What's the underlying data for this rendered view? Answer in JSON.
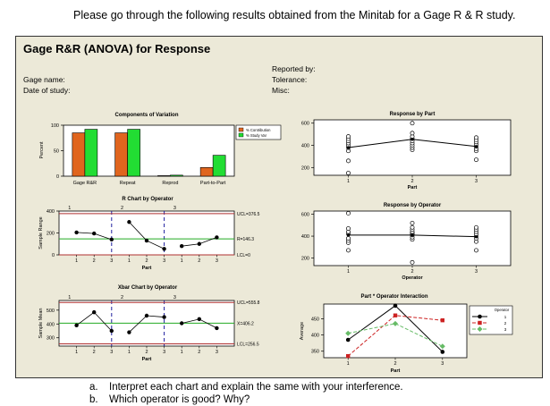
{
  "header": {
    "question": "Please go through the following results obtained from the Minitab for a Gage R & R study."
  },
  "panel": {
    "title": "Gage R&R (ANOVA) for Response",
    "left_meta": [
      "Gage name:",
      "Date of study:"
    ],
    "right_meta": [
      "Reported by:",
      "Tolerance:",
      "Misc:"
    ]
  },
  "tasks": [
    {
      "letter": "a.",
      "text": "Interpret each chart and explain the same with your interference."
    },
    {
      "letter": "b.",
      "text": "Which operator is good?  Why?"
    }
  ],
  "colors": {
    "contribution": "#e0651e",
    "study_var": "#22dd33",
    "limit": "#b03030",
    "center": "#22aa22",
    "op1": "#000000",
    "op2": "#cc2222",
    "op3": "#66bb66"
  },
  "chart_data": [
    {
      "id": "components",
      "type": "bar",
      "title": "Components of Variation",
      "ylabel": "Percent",
      "categories": [
        "Gage R&R",
        "Repeat",
        "Reprod",
        "Part-to-Part"
      ],
      "series": [
        {
          "name": "% Contribution",
          "values": [
            85,
            85,
            1,
            17
          ]
        },
        {
          "name": "% Study Var",
          "values": [
            92,
            92,
            2,
            41
          ]
        }
      ],
      "ylim": [
        0,
        100
      ],
      "yticks": [
        0,
        50,
        100
      ]
    },
    {
      "id": "r_chart",
      "type": "line",
      "title": "R Chart by Operator",
      "ylabel": "Sample Range",
      "xlabel": "Part",
      "operators": [
        "1",
        "2",
        "3"
      ],
      "x_tick_labels": [
        "1",
        "2",
        "3",
        "1",
        "2",
        "3",
        "1",
        "2",
        "3"
      ],
      "values": [
        205,
        195,
        140,
        300,
        130,
        55,
        80,
        100,
        160
      ],
      "ucl": 376.5,
      "center": 146.3,
      "lcl": 0,
      "ucl_label": "UCL=376.5",
      "center_label": "R=146.3",
      "lcl_label": "LCL=0",
      "ylim": [
        0,
        400
      ],
      "yticks": [
        0,
        200,
        400
      ]
    },
    {
      "id": "xbar_chart",
      "type": "line",
      "title": "Xbar Chart by Operator",
      "ylabel": "Sample Mean",
      "xlabel": "Part",
      "operators": [
        "1",
        "2",
        "3"
      ],
      "x_tick_labels": [
        "1",
        "2",
        "3",
        "1",
        "2",
        "3",
        "1",
        "2",
        "3"
      ],
      "values": [
        390,
        485,
        350,
        340,
        460,
        450,
        405,
        435,
        370
      ],
      "ucl": 555.8,
      "center": 406.2,
      "lcl": 256.5,
      "ucl_label": "UCL=555.8",
      "center_label": "X=406.2",
      "lcl_label": "LCL=256.5",
      "ylim": [
        240,
        570
      ],
      "yticks": [
        300,
        400,
        500
      ]
    },
    {
      "id": "by_part",
      "type": "scatter",
      "title": "Response by Part",
      "xlabel": "Part",
      "categories": [
        "1",
        "2",
        "3"
      ],
      "points": [
        [
          150,
          260,
          350,
          380,
          400,
          420,
          440,
          460,
          480
        ],
        [
          360,
          380,
          400,
          420,
          440,
          460,
          480,
          510,
          600
        ],
        [
          270,
          350,
          370,
          390,
          410,
          430,
          450,
          470
        ]
      ],
      "means": [
        380,
        455,
        390
      ],
      "ylim": [
        130,
        630
      ],
      "yticks": [
        200,
        400,
        600
      ]
    },
    {
      "id": "by_operator",
      "type": "scatter",
      "title": "Response by Operator",
      "xlabel": "Operator",
      "categories": [
        "1",
        "2",
        "3"
      ],
      "points": [
        [
          270,
          340,
          360,
          380,
          420,
          440,
          470,
          610
        ],
        [
          160,
          370,
          390,
          410,
          420,
          430,
          440,
          460,
          480,
          520
        ],
        [
          270,
          350,
          380,
          400,
          420,
          440,
          460,
          480
        ]
      ],
      "means": [
        410,
        410,
        395
      ],
      "ylim": [
        130,
        630
      ],
      "yticks": [
        200,
        400,
        600
      ]
    },
    {
      "id": "interaction",
      "type": "line",
      "title": "Part * Operator Interaction",
      "ylabel": "Average",
      "xlabel": "Part",
      "categories": [
        "1",
        "2",
        "3"
      ],
      "legend_title": "Operator",
      "series": [
        {
          "name": "1",
          "values": [
            385,
            490,
            348
          ]
        },
        {
          "name": "2",
          "values": [
            335,
            460,
            445
          ]
        },
        {
          "name": "3",
          "values": [
            405,
            435,
            365
          ]
        }
      ],
      "ylim": [
        330,
        495
      ],
      "yticks": [
        350,
        400,
        450
      ]
    }
  ]
}
